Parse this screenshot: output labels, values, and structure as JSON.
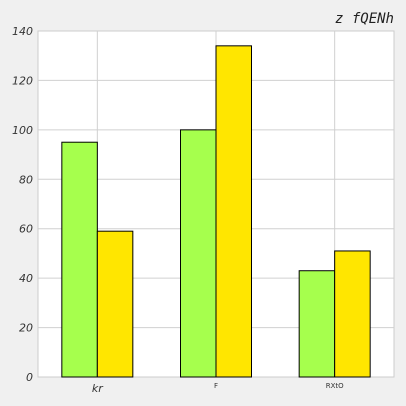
{
  "chart_data": {
    "type": "bar",
    "title": "z  fQENh",
    "categories": [
      "kr",
      "F",
      "RXtO"
    ],
    "series": [
      {
        "values": [
          95,
          100,
          43
        ],
        "color": "#a6ff4d"
      },
      {
        "values": [
          59,
          134,
          51
        ],
        "color": "#ffe600"
      }
    ],
    "ylim": [
      0,
      140
    ],
    "yticks": [
      0,
      20,
      40,
      60,
      80,
      100,
      120,
      140
    ],
    "grid": true,
    "legend": "none",
    "colors": {
      "background": "#f0f0f0",
      "plot_background": "#ffffff",
      "grid": "#d0d0d0",
      "bar_edge": "#000000"
    }
  }
}
